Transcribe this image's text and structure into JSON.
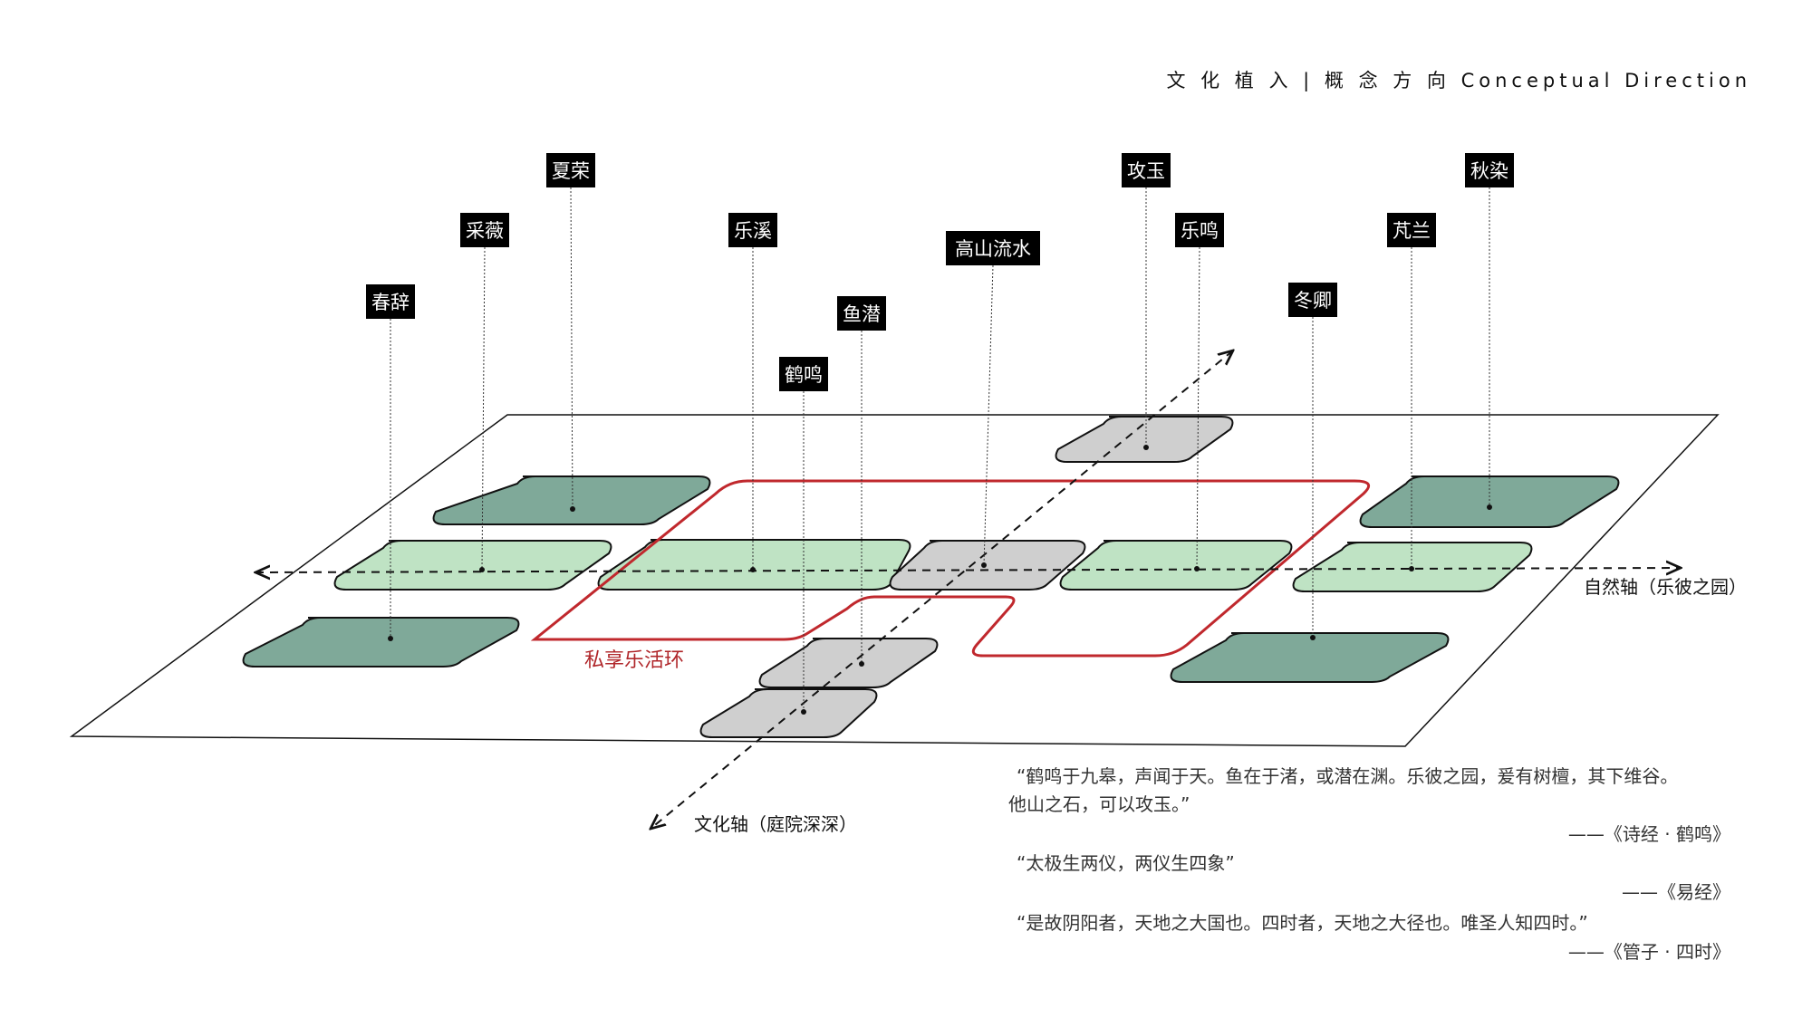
{
  "title": "文 化 植 入 | 概 念 方 向 Conceptual Direction",
  "colors": {
    "dark_green": "#7fa999",
    "light_green": "#bfe3c4",
    "gray": "#cfcfcf",
    "loop_red": "#c0282d",
    "label_bg": "#000000"
  },
  "nodes": [
    {
      "label": "春辞",
      "tone": "dark_green"
    },
    {
      "label": "采薇",
      "tone": "light_green"
    },
    {
      "label": "夏荣",
      "tone": "dark_green"
    },
    {
      "label": "乐溪",
      "tone": "light_green"
    },
    {
      "label": "鹤鸣",
      "tone": "gray"
    },
    {
      "label": "鱼潜",
      "tone": "gray"
    },
    {
      "label": "高山流水",
      "tone": "gray"
    },
    {
      "label": "攻玉",
      "tone": "gray"
    },
    {
      "label": "乐鸣",
      "tone": "light_green"
    },
    {
      "label": "冬卿",
      "tone": "dark_green"
    },
    {
      "label": "芃兰",
      "tone": "light_green"
    },
    {
      "label": "秋染",
      "tone": "dark_green"
    }
  ],
  "loop_label": "私享乐活环",
  "axes": {
    "nature": "自然轴（乐彼之园）",
    "culture": "文化轴（庭院深深）"
  },
  "quotes": [
    {
      "lines": [
        "“鹤鸣于九皋，声闻于天。鱼在于渚，或潜在渊。乐彼之园，爰有树檀，其下维谷。",
        "他山之石，可以攻玉。”"
      ],
      "source": "——《诗经 · 鹤鸣》"
    },
    {
      "lines": [
        "“太极生两仪，两仪生四象”"
      ],
      "source": "——《易经》"
    },
    {
      "lines": [
        "“是故阴阳者，天地之大国也。四时者，天地之大径也。唯圣人知四时。”"
      ],
      "source": "——《管子 · 四时》"
    }
  ]
}
